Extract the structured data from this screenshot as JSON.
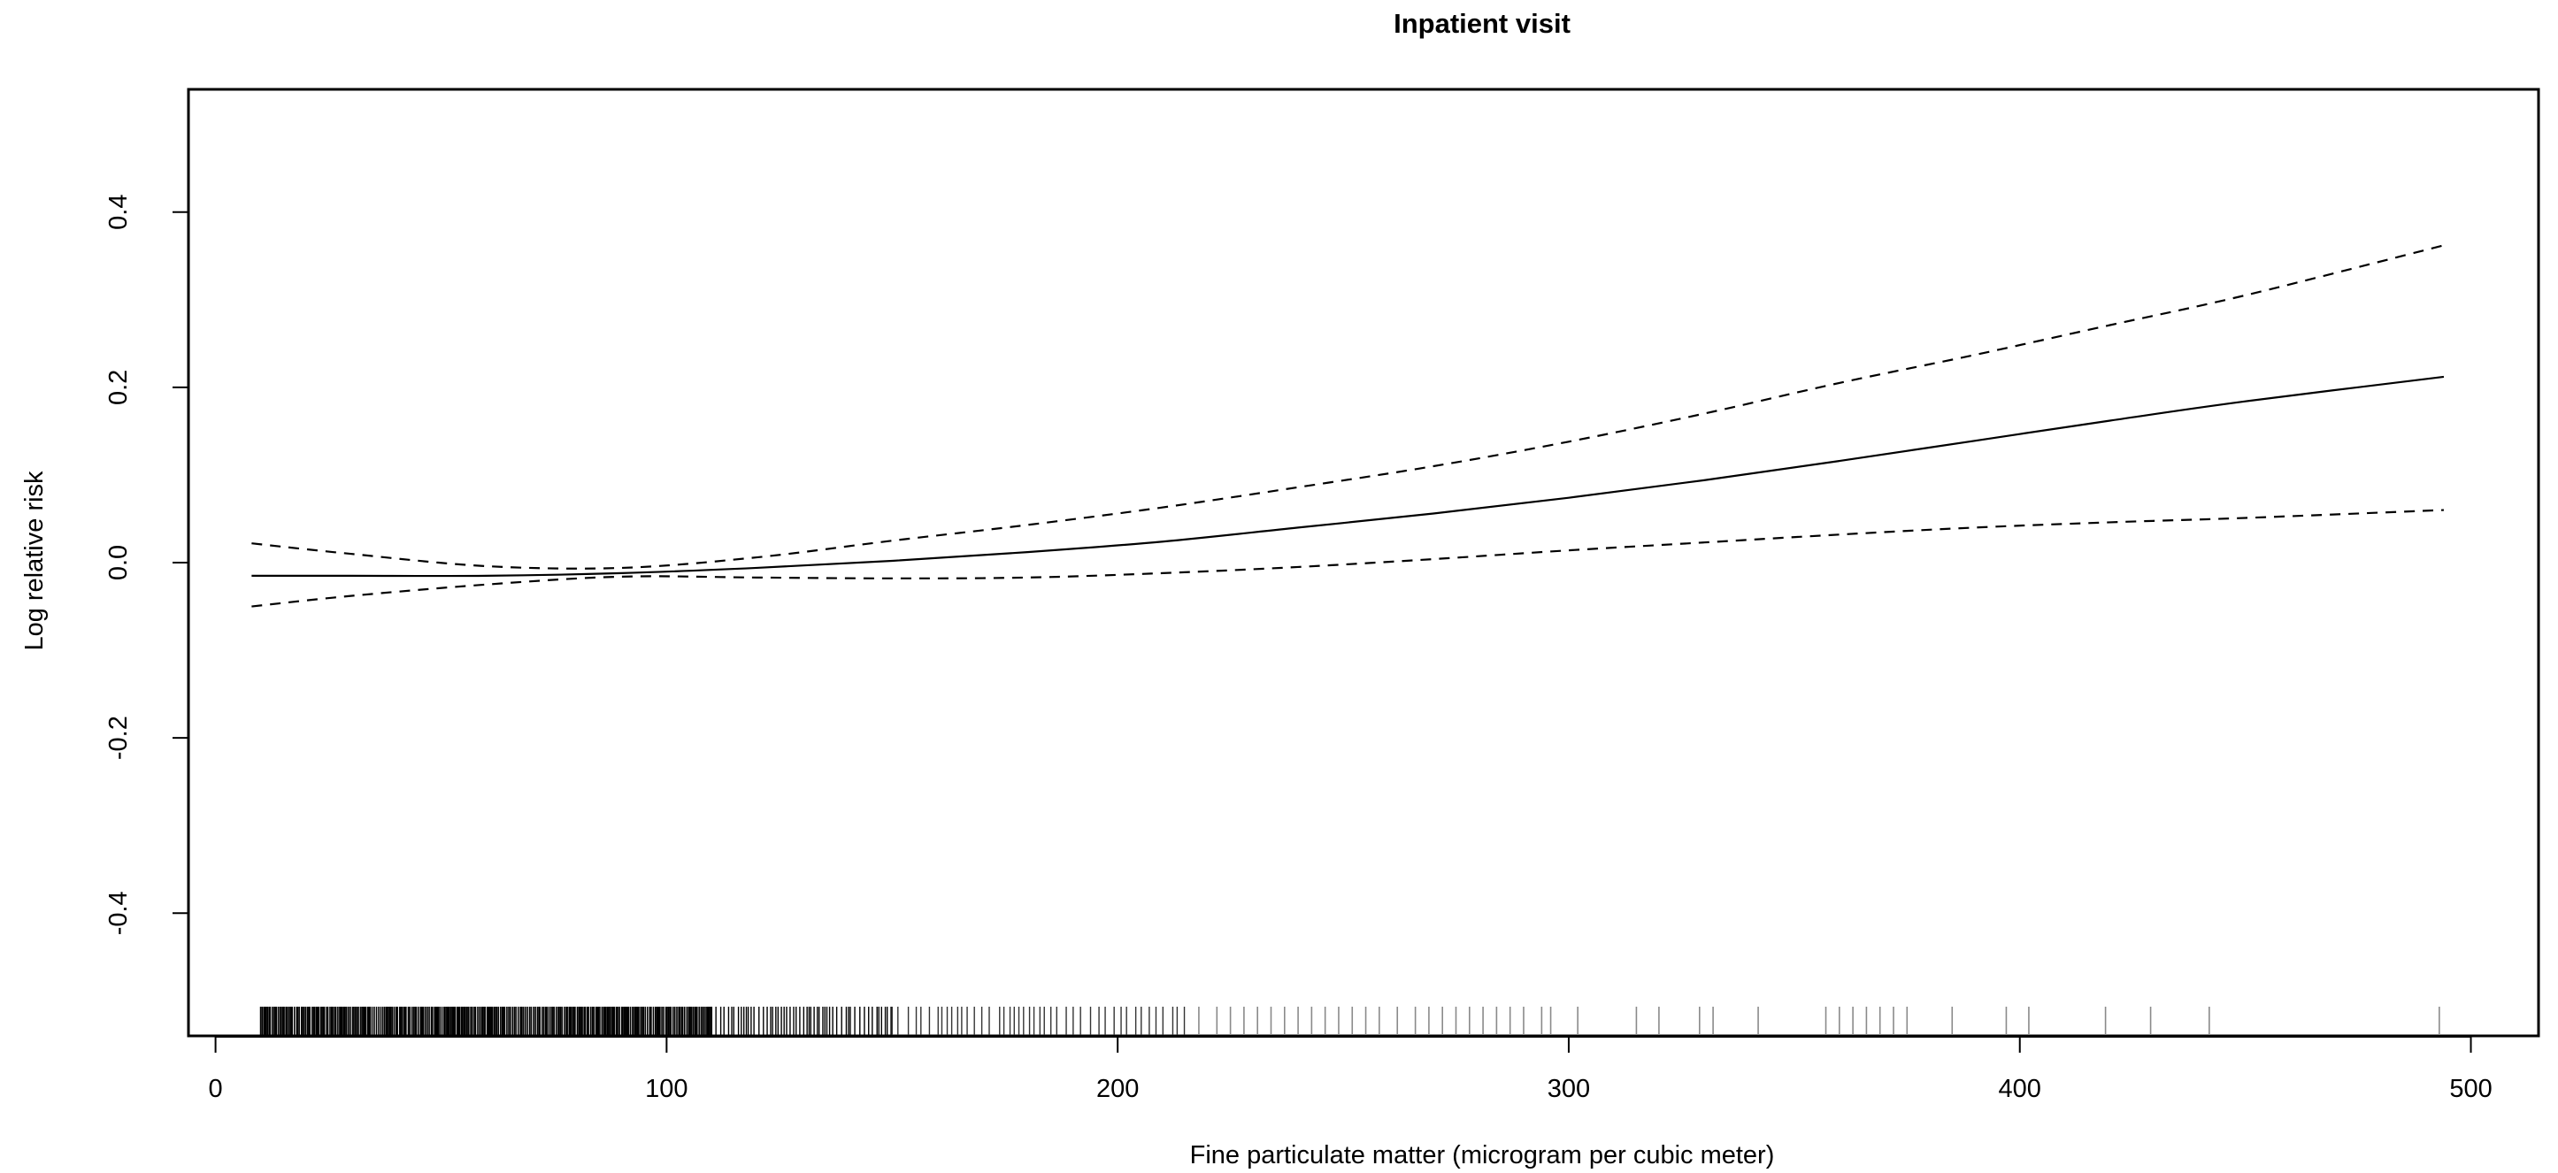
{
  "chart_data": {
    "type": "line",
    "title": "Inpatient visit",
    "xlabel": "Fine particulate matter (microgram per cubic meter)",
    "ylabel": "Log relative risk",
    "xlim": [
      -6,
      515
    ],
    "ylim": [
      -0.54,
      0.54
    ],
    "x_ticks": [
      0,
      100,
      200,
      300,
      400,
      500
    ],
    "x_tick_labels": [
      "0",
      "100",
      "200",
      "300",
      "400",
      "500"
    ],
    "y_ticks": [
      -0.4,
      -0.2,
      0.0,
      0.2,
      0.4
    ],
    "y_tick_labels": [
      "-0.4",
      "-0.2",
      "0.0",
      "0.2",
      "0.4"
    ],
    "grid": false,
    "legend": "none",
    "series": [
      {
        "style": "solid",
        "x": [
          8,
          30,
          60,
          90,
          120,
          150,
          180,
          210,
          240,
          270,
          300,
          330,
          360,
          390,
          420,
          450,
          494
        ],
        "y": [
          -0.015,
          -0.015,
          -0.015,
          -0.012,
          -0.006,
          0.002,
          0.012,
          0.024,
          0.04,
          0.056,
          0.074,
          0.094,
          0.116,
          0.139,
          0.162,
          0.184,
          0.212
        ]
      },
      {
        "style": "dashed",
        "x": [
          8,
          30,
          60,
          90,
          120,
          150,
          180,
          210,
          240,
          270,
          300,
          330,
          360,
          390,
          420,
          450,
          494
        ],
        "y": [
          0.022,
          0.01,
          -0.004,
          -0.006,
          0.006,
          0.025,
          0.043,
          0.063,
          0.086,
          0.11,
          0.138,
          0.17,
          0.205,
          0.237,
          0.271,
          0.305,
          0.362
        ]
      },
      {
        "style": "dashed",
        "x": [
          8,
          30,
          60,
          90,
          120,
          150,
          180,
          210,
          240,
          270,
          300,
          330,
          360,
          390,
          420,
          450,
          494
        ],
        "y": [
          -0.05,
          -0.038,
          -0.025,
          -0.016,
          -0.017,
          -0.018,
          -0.017,
          -0.012,
          -0.005,
          0.004,
          0.014,
          0.023,
          0.032,
          0.04,
          0.046,
          0.051,
          0.06
        ]
      }
    ],
    "rug": {
      "dense_ranges": [
        [
          10,
          110
        ],
        [
          110,
          150
        ],
        [
          150,
          215
        ]
      ],
      "values": [
        218,
        222,
        225,
        228,
        231,
        234,
        237,
        240,
        243,
        246,
        249,
        252,
        255,
        258,
        262,
        266,
        269,
        272,
        275,
        278,
        281,
        284,
        287,
        290,
        294,
        296,
        302,
        315,
        320,
        329,
        332,
        342,
        357,
        360,
        363,
        366,
        369,
        372,
        375,
        385,
        397,
        402,
        419,
        429,
        442,
        493
      ]
    }
  },
  "colors": {
    "line": "#000000",
    "rug_dense": "#000000",
    "rug_sparse": "#8a8a8a",
    "background": "#ffffff"
  }
}
